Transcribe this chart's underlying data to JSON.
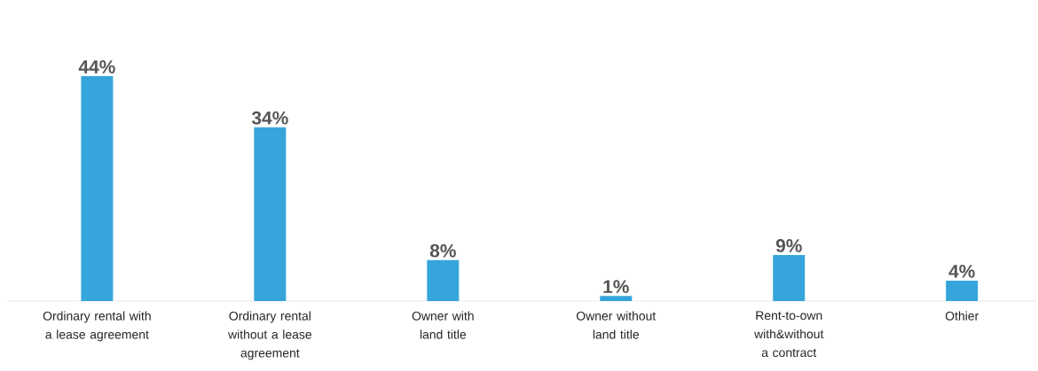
{
  "chart_data": {
    "type": "bar",
    "categories": [
      "Ordinary rental with a lease agreement",
      "Ordinary rental without a lease agreement",
      "Owner with land title",
      "Owner without land title",
      "Rent-to-own with&without a contract",
      "Othier"
    ],
    "values": [
      44,
      34,
      8,
      1,
      9,
      4
    ],
    "value_labels": [
      "44%",
      "34%",
      "8%",
      "1%",
      "9%",
      "4%"
    ],
    "color": "#35a5dc"
  }
}
